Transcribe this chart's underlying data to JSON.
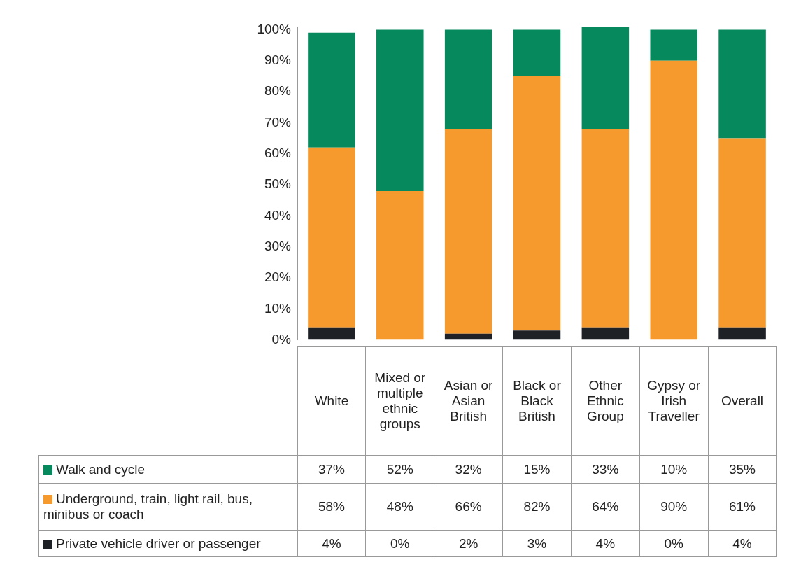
{
  "chart_data": {
    "type": "bar",
    "stacked": true,
    "legend": "bottom",
    "categories": [
      "White",
      "Mixed or multiple ethnic groups",
      "Asian or Asian British",
      "Black or Black British",
      "Other Ethnic Group",
      "Gypsy or Irish Traveller",
      "Overall"
    ],
    "series": [
      {
        "name": "Private vehicle driver or passenger",
        "color": "#1e2227",
        "values": [
          4,
          0,
          2,
          3,
          4,
          0,
          4
        ],
        "value_labels": [
          "4%",
          "0%",
          "2%",
          "3%",
          "4%",
          "0%",
          "4%"
        ]
      },
      {
        "name": "Underground, train, light rail, bus, minibus or coach",
        "color": "#f79a2e",
        "values": [
          58,
          48,
          66,
          82,
          64,
          90,
          61
        ],
        "value_labels": [
          "58%",
          "48%",
          "66%",
          "82%",
          "64%",
          "90%",
          "61%"
        ]
      },
      {
        "name": "Walk and cycle",
        "color": "#068a5d",
        "values": [
          37,
          52,
          32,
          15,
          33,
          10,
          35
        ],
        "value_labels": [
          "37%",
          "52%",
          "32%",
          "15%",
          "33%",
          "10%",
          "35%"
        ]
      }
    ],
    "ylim": [
      0,
      101
    ],
    "yticks": [
      {
        "value": 0,
        "label": "0%"
      },
      {
        "value": 10,
        "label": "10%"
      },
      {
        "value": 20,
        "label": "20%"
      },
      {
        "value": 30,
        "label": "30%"
      },
      {
        "value": 40,
        "label": "40%"
      },
      {
        "value": 50,
        "label": "50%"
      },
      {
        "value": 60,
        "label": "60%"
      },
      {
        "value": 70,
        "label": "70%"
      },
      {
        "value": 80,
        "label": "80%"
      },
      {
        "value": 90,
        "label": "90%"
      },
      {
        "value": 100,
        "label": "100%"
      }
    ]
  }
}
